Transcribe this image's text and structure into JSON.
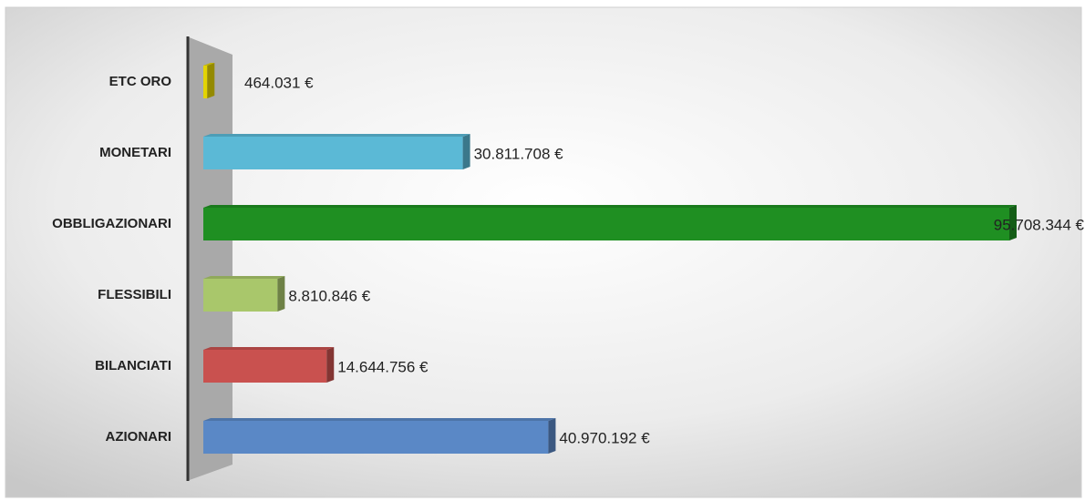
{
  "chart_data": {
    "type": "bar3d_horizontal",
    "categories": [
      "ETC ORO",
      "MONETARI",
      "OBBLIGAZIONARI",
      "FLESSIBILI",
      "BILANCIATI",
      "AZIONARI"
    ],
    "values": [
      464031,
      30811708,
      95708344,
      8810846,
      14644756,
      40970192
    ],
    "value_labels": [
      "464.031 €",
      "30.811.708 €",
      "95.708.344 €",
      "8.810.846 €",
      "14.644.756 €",
      "40.970.192 €"
    ],
    "colors": [
      "#e3d400",
      "#5bb9d6",
      "#1f8f22",
      "#a9c76b",
      "#c9514f",
      "#5a88c6"
    ]
  }
}
